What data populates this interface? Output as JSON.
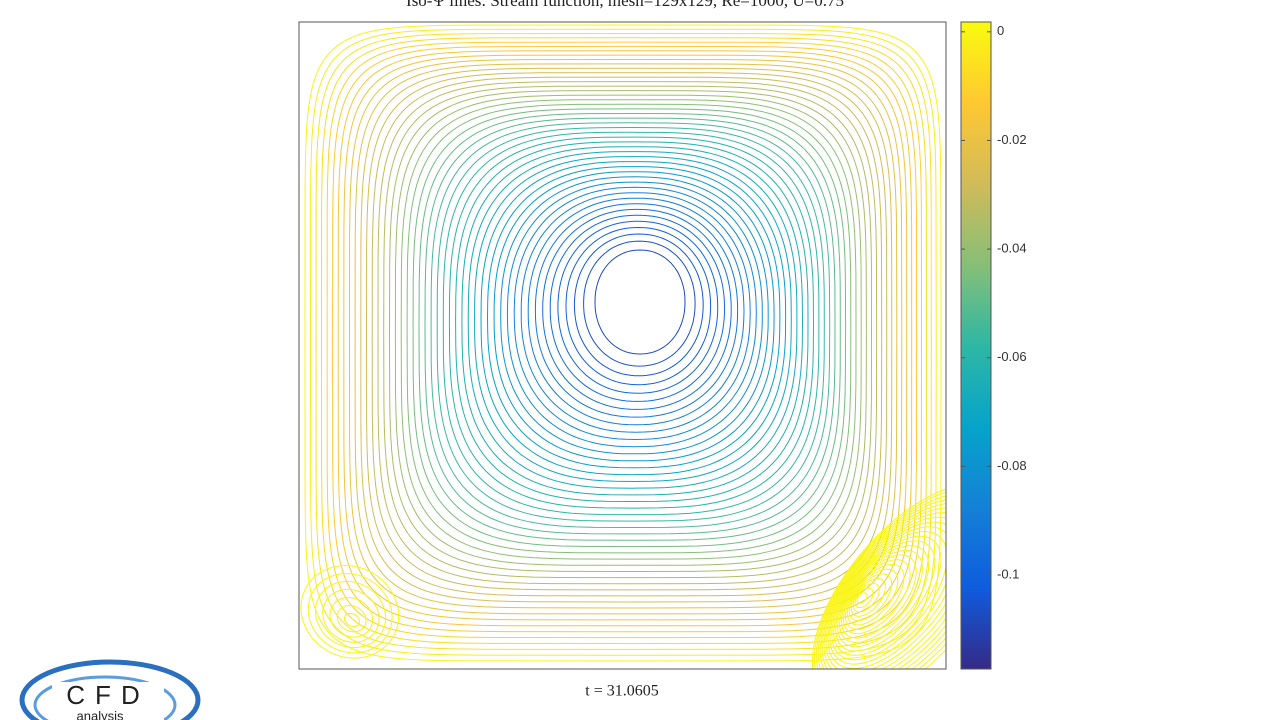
{
  "chart_data": {
    "type": "contour",
    "title": "Iso-Ψ lines: Stream function, mesh=129x129, Re=1000, U=0.75",
    "xlabel": "t = 31.0605",
    "colormap": "parula",
    "clim": [
      -0.1173,
      0.0018
    ],
    "cticks": [
      0,
      -0.02,
      -0.04,
      -0.06,
      -0.08,
      -0.1
    ]
  },
  "logo": {
    "title": "CFD",
    "subtitle": "analysis"
  }
}
